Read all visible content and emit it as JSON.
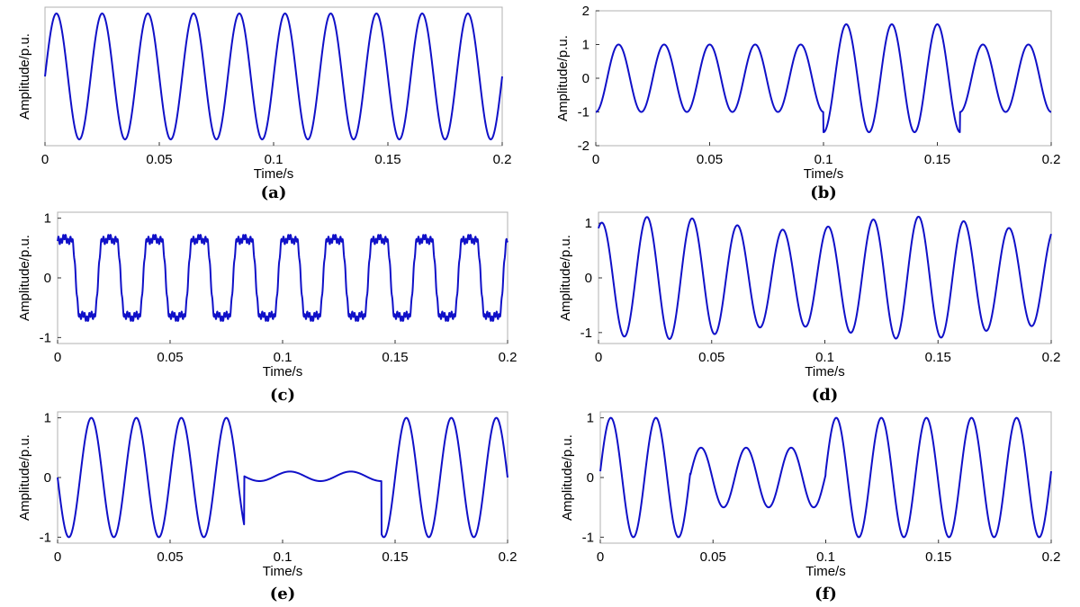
{
  "colors": {
    "wave": "#1010c8",
    "frame": "#b0b0b0"
  },
  "chart_data": [
    {
      "type": "line",
      "caption": "(a)",
      "xlabel": "Time/s",
      "ylabel": "Amplitude/p.u.",
      "xlim": [
        0,
        0.2
      ],
      "ylim": [
        -1.1,
        1.1
      ],
      "x_ticks": [
        "0",
        "0.05",
        "0.1",
        "0.15",
        "0.2"
      ],
      "y_ticks": [],
      "grid": false,
      "signal": {
        "kind": "sine",
        "frequency_hz": 50,
        "phase_deg": 0,
        "amplitude": 1
      }
    },
    {
      "type": "line",
      "caption": "(b)",
      "xlabel": "Time/s",
      "ylabel": "Amplitude/p.u.",
      "xlim": [
        0,
        0.2
      ],
      "ylim": [
        -2,
        2
      ],
      "x_ticks": [
        "0",
        "0.05",
        "0.1",
        "0.15",
        "0.2"
      ],
      "y_ticks": [
        "2",
        "1",
        "0",
        "-1",
        "-2"
      ],
      "grid": false,
      "signal": {
        "kind": "swell",
        "frequency_hz": 50,
        "phase_deg": -90,
        "amplitude": 1,
        "event_start_s": 0.1,
        "event_end_s": 0.16,
        "event_amplitude": 1.6
      }
    },
    {
      "type": "line",
      "caption": "(c)",
      "xlabel": "Time/s",
      "ylabel": "Amplitude/p.u.",
      "xlim": [
        0,
        0.2
      ],
      "ylim": [
        -1.1,
        1.1
      ],
      "x_ticks": [
        "0",
        "0.05",
        "0.1",
        "0.15",
        "0.2"
      ],
      "y_ticks": [
        "1",
        "0",
        "-1"
      ],
      "grid": false,
      "signal": {
        "kind": "harmonics",
        "frequency_hz": 50,
        "phase_deg": 35,
        "harmonics": [
          {
            "order": 3,
            "amplitude": 0.25
          },
          {
            "order": 5,
            "amplitude": 0.12
          },
          {
            "order": 19,
            "amplitude": 0.06
          }
        ],
        "peak": 1
      }
    },
    {
      "type": "line",
      "caption": "(d)",
      "xlabel": "Time/s",
      "ylabel": "Amplitude/p.u.",
      "xlim": [
        0,
        0.2
      ],
      "ylim": [
        -1.2,
        1.2
      ],
      "x_ticks": [
        "0",
        "0.05",
        "0.1",
        "0.15",
        "0.2"
      ],
      "y_ticks": [
        "1",
        "0",
        "-1"
      ],
      "grid": false,
      "signal": {
        "kind": "flicker",
        "frequency_hz": 50,
        "phase_deg": 65,
        "amplitude": 1,
        "modulation_depth": 0.12,
        "modulation_hz": 9
      }
    },
    {
      "type": "line",
      "caption": "(e)",
      "xlabel": "Time/s",
      "ylabel": "Amplitude/p.u.",
      "xlim": [
        0,
        0.2
      ],
      "ylim": [
        -1.1,
        1.1
      ],
      "x_ticks": [
        "0",
        "0.05",
        "0.1",
        "0.15",
        "0.2"
      ],
      "y_ticks": [
        "1",
        "0",
        "-1"
      ],
      "grid": false,
      "signal": {
        "kind": "interruption",
        "frequency_hz": 50,
        "phase_deg": 180,
        "amplitude": 1,
        "event_start_s": 0.083,
        "event_end_s": 0.144,
        "event_amplitude": 0.08,
        "event_frequency_hz": 37,
        "event_offset": 0.02
      }
    },
    {
      "type": "line",
      "caption": "(f)",
      "xlabel": "Time/s",
      "ylabel": "Amplitude/p.u.",
      "xlim": [
        0,
        0.2
      ],
      "ylim": [
        -1.1,
        1.1
      ],
      "x_ticks": [
        "0",
        "0.05",
        "0.1",
        "0.15",
        "0.2"
      ],
      "y_ticks": [
        "1",
        "0",
        "-1"
      ],
      "grid": false,
      "signal": {
        "kind": "sag",
        "frequency_hz": 50,
        "phase_deg": 6,
        "amplitude": 1,
        "event_start_s": 0.04,
        "event_end_s": 0.1,
        "event_amplitude": 0.5
      }
    }
  ]
}
